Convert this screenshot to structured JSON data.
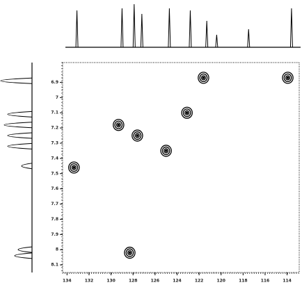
{
  "chart_data": {
    "type": "contour2d",
    "xlim": [
      134.4,
      112.9
    ],
    "xticks": [
      134,
      132,
      130,
      128,
      126,
      124,
      122,
      120,
      118,
      116,
      114
    ],
    "ylim": [
      8.15,
      6.77
    ],
    "yticks": [
      6.9,
      7.0,
      7.1,
      7.2,
      7.3,
      7.4,
      7.5,
      7.6,
      7.7,
      7.8,
      7.9,
      8.0,
      8.1
    ],
    "color": "#000000",
    "peaks": {
      "x": [
        133.37,
        129.32,
        127.61,
        125.0,
        123.1,
        121.6,
        113.94,
        128.3
      ],
      "y": [
        7.46,
        7.18,
        7.25,
        7.35,
        7.1,
        6.87,
        6.87,
        8.02
      ]
    },
    "top_projection": {
      "x": [
        133.1,
        129.0,
        127.9,
        127.2,
        124.7,
        122.8,
        121.3,
        120.4,
        117.5,
        113.6
      ],
      "values": [
        53,
        56,
        62,
        48,
        56,
        53,
        38,
        18,
        26,
        56
      ]
    },
    "left_projection": {
      "y": [
        6.89,
        7.11,
        7.18,
        7.25,
        7.32,
        7.45,
        8.0,
        8.04
      ],
      "values": [
        45,
        35,
        40,
        35,
        35,
        15,
        20,
        25
      ]
    }
  }
}
